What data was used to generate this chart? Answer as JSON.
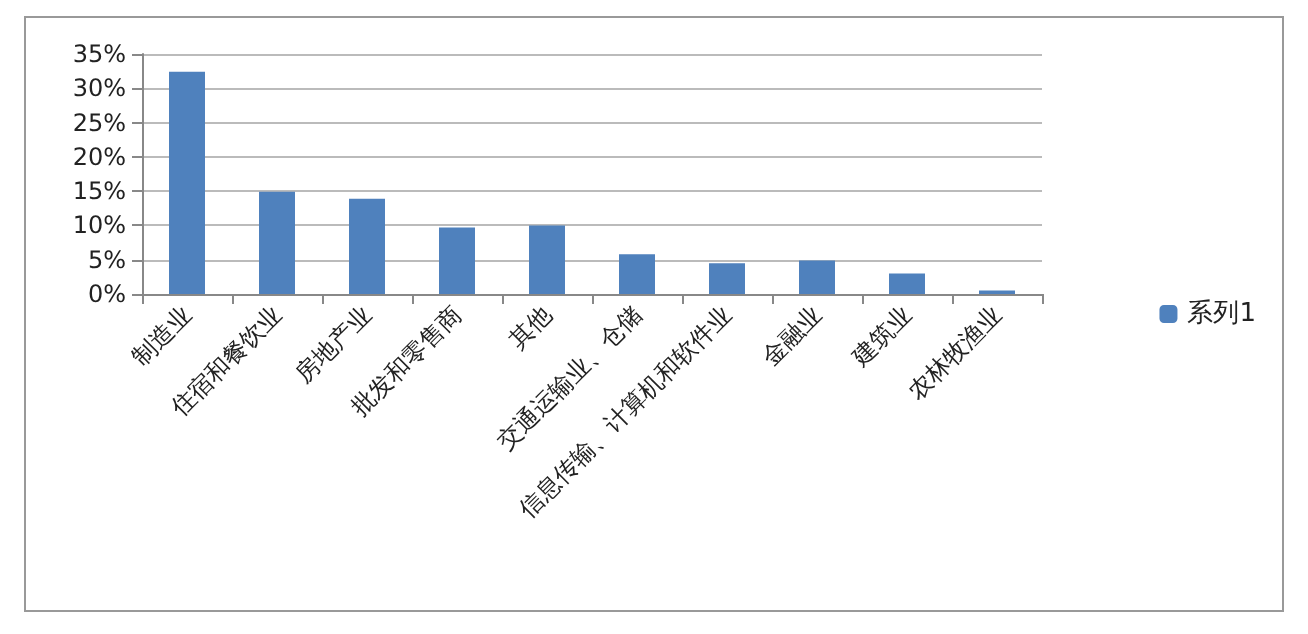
{
  "chart_data": {
    "type": "bar",
    "categories": [
      "制造业",
      "住宿和餐饮业",
      "房地产业",
      "批发和零售商",
      "其他",
      "交通运输业、仓储",
      "信息传输、计算机和软件业",
      "金融业",
      "建筑业",
      "农林牧渔业"
    ],
    "series": [
      {
        "name": "系列1",
        "color": "#4f81bd",
        "values": [
          32.4,
          14.9,
          13.9,
          9.7,
          10,
          5.8,
          4.5,
          4.9,
          3,
          0.5
        ]
      }
    ],
    "ylim": [
      0,
      35
    ],
    "yticks": [
      {
        "value": 0,
        "label": "0%"
      },
      {
        "value": 5,
        "label": "5%"
      },
      {
        "value": 10,
        "label": "10%"
      },
      {
        "value": 15,
        "label": "15%"
      },
      {
        "value": 20,
        "label": "20%"
      },
      {
        "value": 25,
        "label": "25%"
      },
      {
        "value": 30,
        "label": "30%"
      },
      {
        "value": 35,
        "label": "35%"
      }
    ],
    "grid": "y",
    "legend": "right"
  }
}
